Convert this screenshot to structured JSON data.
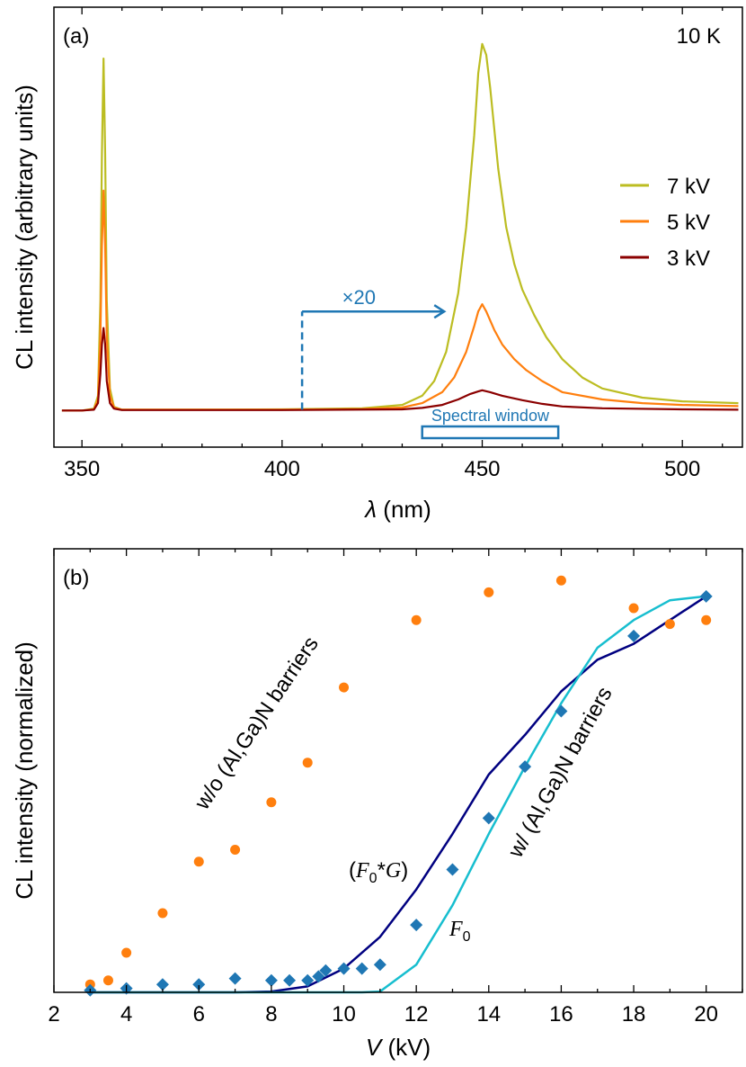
{
  "chart_data": [
    {
      "type": "line",
      "panel_label": "(a)",
      "temperature_label": "10 K",
      "xlabel_symbol": "λ",
      "xlabel_unit": " (nm)",
      "ylabel": "CL intensity (arbitrary units)",
      "xlim": [
        343,
        515
      ],
      "ylim": [
        -10,
        110
      ],
      "xticks": [
        350,
        400,
        450,
        500
      ],
      "y_ticklabels": false,
      "legend_position": "right",
      "series": [
        {
          "name": "7 kV",
          "color": "#bcbd22",
          "values": [
            [
              345,
              0
            ],
            [
              350,
              0
            ],
            [
              353,
              0.5
            ],
            [
              354,
              4
            ],
            [
              354.6,
              30
            ],
            [
              355,
              70
            ],
            [
              355.4,
              96
            ],
            [
              355.8,
              70
            ],
            [
              356.2,
              30
            ],
            [
              357,
              6
            ],
            [
              358,
              1
            ],
            [
              360,
              0.2
            ],
            [
              370,
              0.2
            ],
            [
              400,
              0.3
            ],
            [
              420,
              0.6
            ],
            [
              430,
              1.5
            ],
            [
              435,
              4
            ],
            [
              438,
              8
            ],
            [
              441,
              16
            ],
            [
              444,
              32
            ],
            [
              446,
              50
            ],
            [
              448,
              75
            ],
            [
              449,
              92
            ],
            [
              450,
              100
            ],
            [
              451,
              97
            ],
            [
              452,
              88
            ],
            [
              454,
              66
            ],
            [
              456,
              50
            ],
            [
              458,
              40
            ],
            [
              460,
              33
            ],
            [
              463,
              26
            ],
            [
              466,
              20
            ],
            [
              470,
              14
            ],
            [
              475,
              9
            ],
            [
              480,
              6
            ],
            [
              490,
              3.5
            ],
            [
              500,
              2.5
            ],
            [
              514,
              2
            ]
          ]
        },
        {
          "name": "5 kV",
          "color": "#ff7f0e",
          "values": [
            [
              345,
              0
            ],
            [
              350,
              0
            ],
            [
              353,
              0.3
            ],
            [
              354,
              3
            ],
            [
              354.6,
              20
            ],
            [
              355,
              45
            ],
            [
              355.4,
              60
            ],
            [
              355.8,
              45
            ],
            [
              356.2,
              20
            ],
            [
              357,
              4
            ],
            [
              358,
              0.8
            ],
            [
              360,
              0.2
            ],
            [
              400,
              0.2
            ],
            [
              420,
              0.4
            ],
            [
              430,
              0.8
            ],
            [
              435,
              2
            ],
            [
              440,
              5
            ],
            [
              443,
              9
            ],
            [
              446,
              16
            ],
            [
              448,
              23
            ],
            [
              449,
              27
            ],
            [
              450,
              29
            ],
            [
              451,
              27
            ],
            [
              453,
              22
            ],
            [
              455,
              18
            ],
            [
              458,
              14
            ],
            [
              461,
              11
            ],
            [
              465,
              8
            ],
            [
              470,
              5
            ],
            [
              480,
              3
            ],
            [
              490,
              2
            ],
            [
              500,
              1.5
            ],
            [
              514,
              1.2
            ]
          ]
        },
        {
          "name": "3 kV",
          "color": "#8b0000",
          "values": [
            [
              345,
              0
            ],
            [
              350,
              0
            ],
            [
              353,
              0.2
            ],
            [
              354,
              2
            ],
            [
              354.6,
              10
            ],
            [
              355,
              18
            ],
            [
              355.4,
              22.5
            ],
            [
              355.8,
              18
            ],
            [
              356.2,
              8
            ],
            [
              357,
              2
            ],
            [
              358,
              0.5
            ],
            [
              360,
              0.1
            ],
            [
              400,
              0.1
            ],
            [
              430,
              0.3
            ],
            [
              435,
              0.7
            ],
            [
              440,
              1.5
            ],
            [
              444,
              3
            ],
            [
              447,
              4.5
            ],
            [
              449,
              5.2
            ],
            [
              450,
              5.5
            ],
            [
              452,
              5
            ],
            [
              455,
              4
            ],
            [
              460,
              2.8
            ],
            [
              465,
              1.8
            ],
            [
              470,
              1.1
            ],
            [
              480,
              0.6
            ],
            [
              500,
              0.3
            ],
            [
              514,
              0.2
            ]
          ]
        }
      ],
      "annotations": [
        {
          "text": "×20",
          "color": "#1f77b4"
        },
        {
          "text": "Spectral window",
          "color": "#1f77b4",
          "range": [
            435,
            469
          ]
        }
      ]
    },
    {
      "type": "scatter",
      "panel_label": "(b)",
      "xlabel_symbol": "V",
      "xlabel_unit": " (kV)",
      "ylabel": "CL intensity (normalized)",
      "xlim": [
        2,
        21
      ],
      "ylim": [
        0,
        1.12
      ],
      "xticks": [
        2,
        4,
        6,
        8,
        10,
        12,
        14,
        16,
        18,
        20
      ],
      "y_ticklabels": false,
      "series": [
        {
          "name": "w/o (Al,Ga)N barriers",
          "marker": "circle",
          "color": "#ff7f0e",
          "x": [
            3,
            3.5,
            4,
            5,
            6,
            7,
            8,
            9,
            10,
            12,
            14,
            16,
            18,
            19,
            20
          ],
          "y": [
            0.02,
            0.03,
            0.1,
            0.2,
            0.33,
            0.36,
            0.48,
            0.58,
            0.77,
            0.94,
            1.01,
            1.04,
            0.97,
            0.93,
            0.94
          ]
        },
        {
          "name": "w/ (Al,Ga)N barriers",
          "marker": "diamond",
          "color": "#1f77b4",
          "x": [
            3,
            4,
            5,
            6,
            7,
            8,
            8.5,
            9,
            9.3,
            9.5,
            10,
            10.5,
            11,
            12,
            13,
            14,
            15,
            16,
            18,
            20
          ],
          "y": [
            0.005,
            0.01,
            0.02,
            0.02,
            0.035,
            0.03,
            0.03,
            0.03,
            0.04,
            0.055,
            0.06,
            0.06,
            0.07,
            0.17,
            0.31,
            0.44,
            0.57,
            0.71,
            0.9,
            1.0
          ]
        },
        {
          "name": "(F0*G)",
          "label_main": "(",
          "label_script": "F",
          "label_sub": "0",
          "label_op": "*",
          "label_script2": "G",
          "label_close": ")",
          "line": true,
          "color": "#000080",
          "x": [
            3,
            7,
            8,
            9,
            10,
            11,
            12,
            13,
            14,
            15,
            16,
            17,
            18,
            19,
            20
          ],
          "y": [
            0,
            0,
            0.002,
            0.015,
            0.06,
            0.14,
            0.26,
            0.4,
            0.55,
            0.65,
            0.76,
            0.84,
            0.88,
            0.94,
            1.0
          ]
        },
        {
          "name": "F0",
          "label_script": "F",
          "label_sub": "0",
          "line": true,
          "color": "#17becf",
          "x": [
            3,
            10,
            10.5,
            11,
            12,
            13,
            14,
            15,
            16,
            17,
            18,
            19,
            20
          ],
          "y": [
            0,
            0,
            0,
            0.002,
            0.07,
            0.22,
            0.4,
            0.57,
            0.73,
            0.87,
            0.94,
            0.99,
            1.0
          ]
        }
      ]
    }
  ]
}
